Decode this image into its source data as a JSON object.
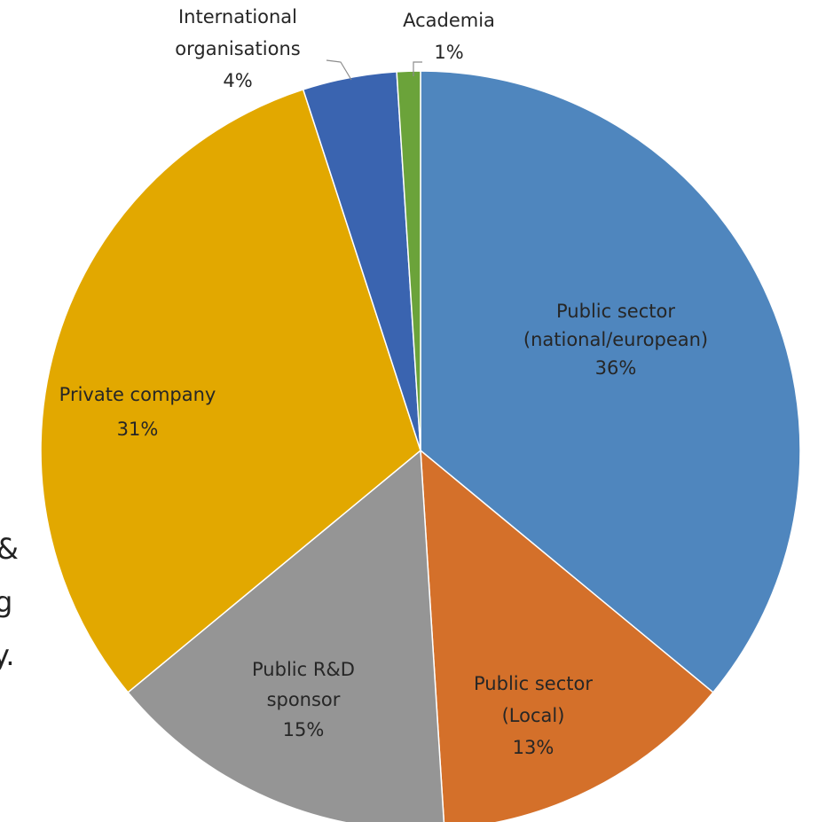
{
  "chart_data": {
    "type": "pie",
    "start_angle_deg": 0,
    "direction": "clockwise",
    "slices": [
      {
        "label_lines": [
          "Public sector",
          "(national/european)",
          "36%"
        ],
        "value": 36,
        "color": "#4f86be"
      },
      {
        "label_lines": [
          "Public sector",
          "(Local)",
          "13%"
        ],
        "value": 13,
        "color": "#d4702a"
      },
      {
        "label_lines": [
          "Public R&D",
          "sponsor",
          "15%"
        ],
        "value": 15,
        "color": "#959595"
      },
      {
        "label_lines": [
          "Private company",
          "31%"
        ],
        "value": 31,
        "color": "#e2a800"
      },
      {
        "label_lines": [
          "International",
          "organisations",
          "4%"
        ],
        "value": 4,
        "color": "#3a64b0"
      },
      {
        "label_lines": [
          "Academia",
          "1%"
        ],
        "value": 1,
        "color": "#6ba33a"
      }
    ]
  },
  "left_edge_fragments": [
    "&",
    "g",
    "y."
  ]
}
